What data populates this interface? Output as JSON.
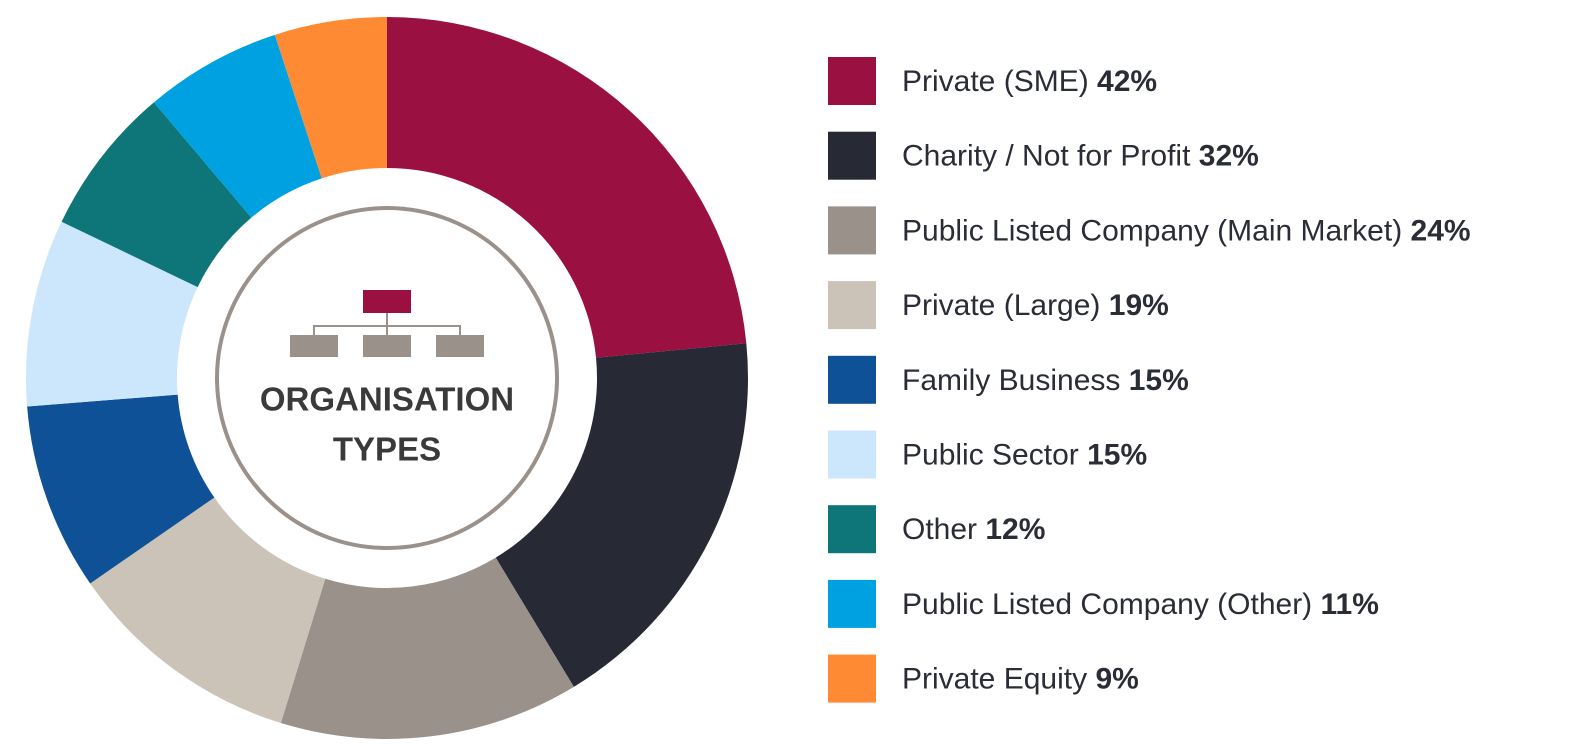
{
  "chart_data": {
    "type": "donut",
    "title_lines": [
      "ORGANISATION",
      "TYPES"
    ],
    "categories": [
      "Private (SME)",
      "Charity / Not for Profit",
      "Public Listed Company (Main Market)",
      "Private (Large)",
      "Family Business",
      "Public Sector",
      "Other",
      "Public Listed Company (Other)",
      "Private Equity"
    ],
    "values": [
      42,
      32,
      24,
      19,
      15,
      15,
      12,
      11,
      9
    ],
    "value_labels": [
      "42%",
      "32%",
      "24%",
      "19%",
      "15%",
      "15%",
      "12%",
      "11%",
      "9%"
    ],
    "colors": [
      "#9a1040",
      "#272a35",
      "#9a918b",
      "#cbc2b8",
      "#0f5196",
      "#cce6fc",
      "#0e7579",
      "#00a1e0",
      "#fe8b33"
    ],
    "legend": "right"
  }
}
